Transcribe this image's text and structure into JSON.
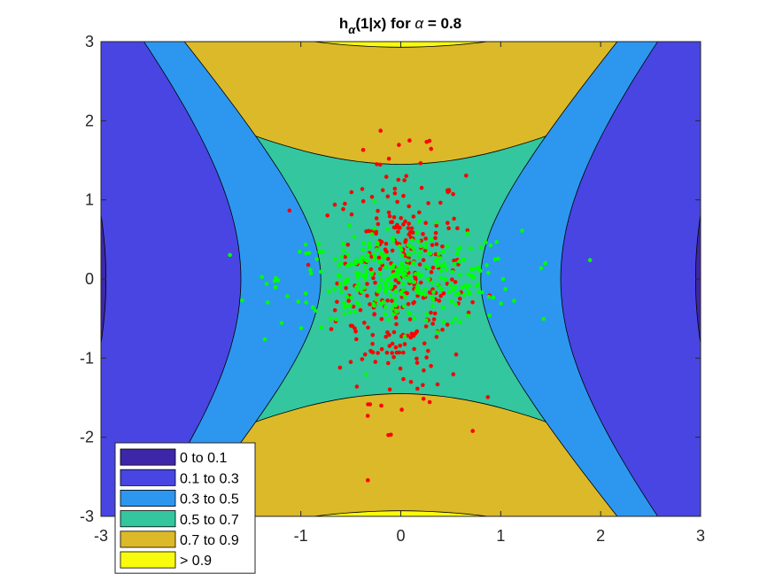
{
  "chart_data": {
    "type": "contour-scatter",
    "title": {
      "main": "h",
      "sub_alpha": "α",
      "rest": "(1|x) for ",
      "alpha": "α",
      "eq": " = 0.8"
    },
    "xlabel": "",
    "ylabel": "",
    "xlim": [
      -3,
      3
    ],
    "ylim": [
      -3,
      3
    ],
    "xticks": [
      "-3",
      "-1",
      "0",
      "1",
      "2",
      "3"
    ],
    "xtick_values": [
      -3,
      -1,
      0,
      1,
      2,
      3
    ],
    "yticks": [
      "3",
      "2",
      "1",
      "0",
      "-1",
      "-2",
      "-3"
    ],
    "ytick_values": [
      3,
      2,
      1,
      0,
      -1,
      -2,
      -3
    ],
    "levels": [
      {
        "label": "0 to 0.1",
        "color": "#3e26a8"
      },
      {
        "label": "0.1 to 0.3",
        "color": "#4845e3"
      },
      {
        "label": "0.3 to 0.5",
        "color": "#2d97f0"
      },
      {
        "label": "0.5 to 0.7",
        "color": "#33c69f"
      },
      {
        "label": "0.7 to 0.9",
        "color": "#dbb929"
      },
      {
        "label": "> 0.9",
        "color": "#f9fb0e"
      }
    ],
    "legend_position": "bottom-left",
    "series": [
      {
        "color": "#ff0000",
        "std_x": 0.32,
        "std_y": 0.75,
        "count": 320,
        "mean": [
          0,
          0
        ]
      },
      {
        "color": "#00ff00",
        "std_x": 0.6,
        "std_y": 0.3,
        "count": 320,
        "mean": [
          0,
          0
        ]
      }
    ]
  }
}
